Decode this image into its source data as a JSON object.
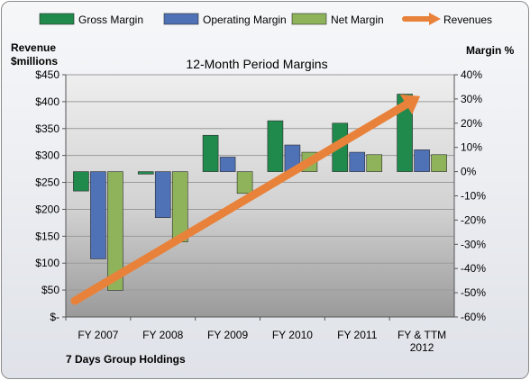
{
  "chart_data": {
    "type": "bar",
    "title": "12-Month Period Margins",
    "company": "7 Days Group Holdings",
    "categories": [
      "FY 2007",
      "FY 2008",
      "FY 2009",
      "FY 2010",
      "FY 2011",
      "FY & TTM 2012"
    ],
    "left_axis": {
      "label_line1": "Revenue",
      "label_line2": "$millions",
      "ylim": [
        0,
        450
      ],
      "ticks": [
        "$-",
        "$50",
        "$100",
        "$150",
        "$200",
        "$250",
        "$300",
        "$350",
        "$400",
        "$450"
      ]
    },
    "right_axis": {
      "label": "Margin %",
      "ylim": [
        -60,
        40
      ],
      "ticks": [
        "-60%",
        "-50%",
        "-40%",
        "-30%",
        "-20%",
        "-10%",
        "0%",
        "10%",
        "20%",
        "30%",
        "40%"
      ]
    },
    "series": [
      {
        "name": "Gross Margin",
        "axis": "right",
        "color": "#1f8a4c",
        "values": [
          -8,
          -1,
          15,
          21,
          20,
          32
        ]
      },
      {
        "name": "Operating Margin",
        "axis": "right",
        "color": "#4f71b6",
        "values": [
          -36,
          -19,
          6,
          11,
          8,
          9
        ]
      },
      {
        "name": "Net Margin",
        "axis": "right",
        "color": "#8fb35a",
        "values": [
          -49,
          -29,
          -9,
          8,
          7,
          7
        ]
      }
    ],
    "trend": {
      "name": "Revenues",
      "color": "#e8823a",
      "start_y": 30,
      "end_y": 410
    },
    "legend_position": "top",
    "grid": true
  }
}
